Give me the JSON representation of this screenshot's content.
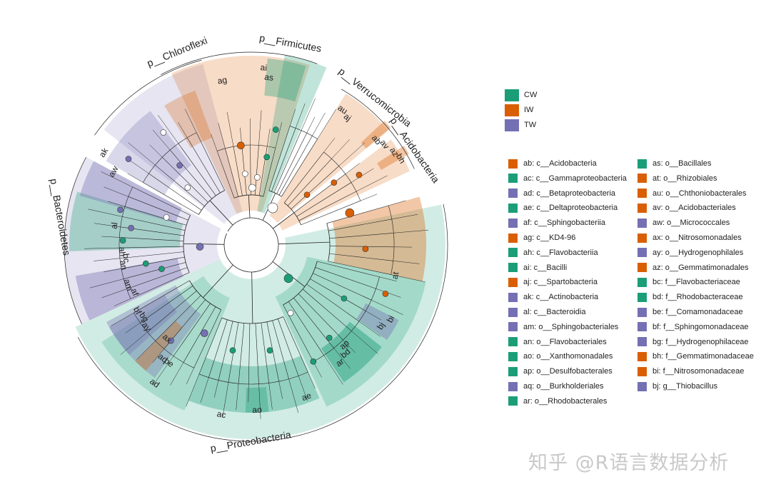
{
  "colors": {
    "CW": "#1b9e77",
    "IW": "#d95f02",
    "TW": "#7570b3"
  },
  "groups": [
    {
      "name": "CW",
      "color": "#1b9e77"
    },
    {
      "name": "IW",
      "color": "#d95f02"
    },
    {
      "name": "TW",
      "color": "#7570b3"
    }
  ],
  "legend_col1": [
    {
      "text": "ab: c__Acidobacteria",
      "color": "#d95f02"
    },
    {
      "text": "ac: c__Gammaproteobacteria",
      "color": "#1b9e77"
    },
    {
      "text": "ad: c__Betaproteobacteria",
      "color": "#7570b3"
    },
    {
      "text": "ae: c__Deltaproteobacteria",
      "color": "#1b9e77"
    },
    {
      "text": "af: c__Sphingobacteriia",
      "color": "#7570b3"
    },
    {
      "text": "ag: c__KD4-96",
      "color": "#d95f02"
    },
    {
      "text": "ah: c__Flavobacteriia",
      "color": "#1b9e77"
    },
    {
      "text": "ai: c__Bacilli",
      "color": "#1b9e77"
    },
    {
      "text": "aj: c__Spartobacteria",
      "color": "#d95f02"
    },
    {
      "text": "ak: c__Actinobacteria",
      "color": "#7570b3"
    },
    {
      "text": "al: c__Bacteroidia",
      "color": "#7570b3"
    },
    {
      "text": "am: o__Sphingobacteriales",
      "color": "#7570b3"
    },
    {
      "text": "an: o__Flavobacteriales",
      "color": "#1b9e77"
    },
    {
      "text": "ao: o__Xanthomonadales",
      "color": "#1b9e77"
    },
    {
      "text": "ap: o__Desulfobacterales",
      "color": "#1b9e77"
    },
    {
      "text": "aq: o__Burkholderiales",
      "color": "#7570b3"
    },
    {
      "text": "ar: o__Rhodobacterales",
      "color": "#1b9e77"
    }
  ],
  "legend_col2": [
    {
      "text": "as: o__Bacillales",
      "color": "#1b9e77"
    },
    {
      "text": "at: o__Rhizobiales",
      "color": "#d95f02"
    },
    {
      "text": "au: o__Chthoniobacterales",
      "color": "#d95f02"
    },
    {
      "text": "av: o__Acidobacteriales",
      "color": "#d95f02"
    },
    {
      "text": "aw: o__Micrococcales",
      "color": "#7570b3"
    },
    {
      "text": "ax: o__Nitrosomonadales",
      "color": "#d95f02"
    },
    {
      "text": "ay: o__Hydrogenophilales",
      "color": "#7570b3"
    },
    {
      "text": "az: o__Gemmatimonadales",
      "color": "#d95f02"
    },
    {
      "text": "bc: f__Flavobacteriaceae",
      "color": "#1b9e77"
    },
    {
      "text": "bd: f__Rhodobacteraceae",
      "color": "#1b9e77"
    },
    {
      "text": "be: f__Comamonadaceae",
      "color": "#7570b3"
    },
    {
      "text": "bf: f__Sphingomonadaceae",
      "color": "#7570b3"
    },
    {
      "text": "bg: f__Hydrogenophilaceae",
      "color": "#7570b3"
    },
    {
      "text": "bh: f__Gemmatimonadaceae",
      "color": "#d95f02"
    },
    {
      "text": "bi: f__Nitrosomonadaceae",
      "color": "#d95f02"
    },
    {
      "text": "bj: g__Thiobacillus",
      "color": "#7570b3"
    }
  ],
  "phyla": [
    {
      "label": "p__Chloroflexi",
      "color": "IW"
    },
    {
      "label": "p__Firmicutes",
      "color": "CW"
    },
    {
      "label": "p__Verrucomicrobia",
      "color": "IW"
    },
    {
      "label": "p__Acidobacteria",
      "color": "IW"
    },
    {
      "label": "p__Proteobacteria",
      "color": "CW"
    },
    {
      "label": "p__Bacteroidetes",
      "color": "TW"
    }
  ],
  "clade_labels": [
    "ag",
    "ai",
    "as",
    "aj",
    "au",
    "ab",
    "av",
    "az",
    "bh",
    "at",
    "bi",
    "bj",
    "ap",
    "bd",
    "ar",
    "ae",
    "ao",
    "ac",
    "ad",
    "be",
    "aq",
    "ax",
    "ay",
    "bg",
    "bf",
    "af",
    "am",
    "an",
    "bc",
    "ah",
    "al",
    "aw",
    "ak"
  ],
  "watermark": "知乎 @R语言数据分析"
}
